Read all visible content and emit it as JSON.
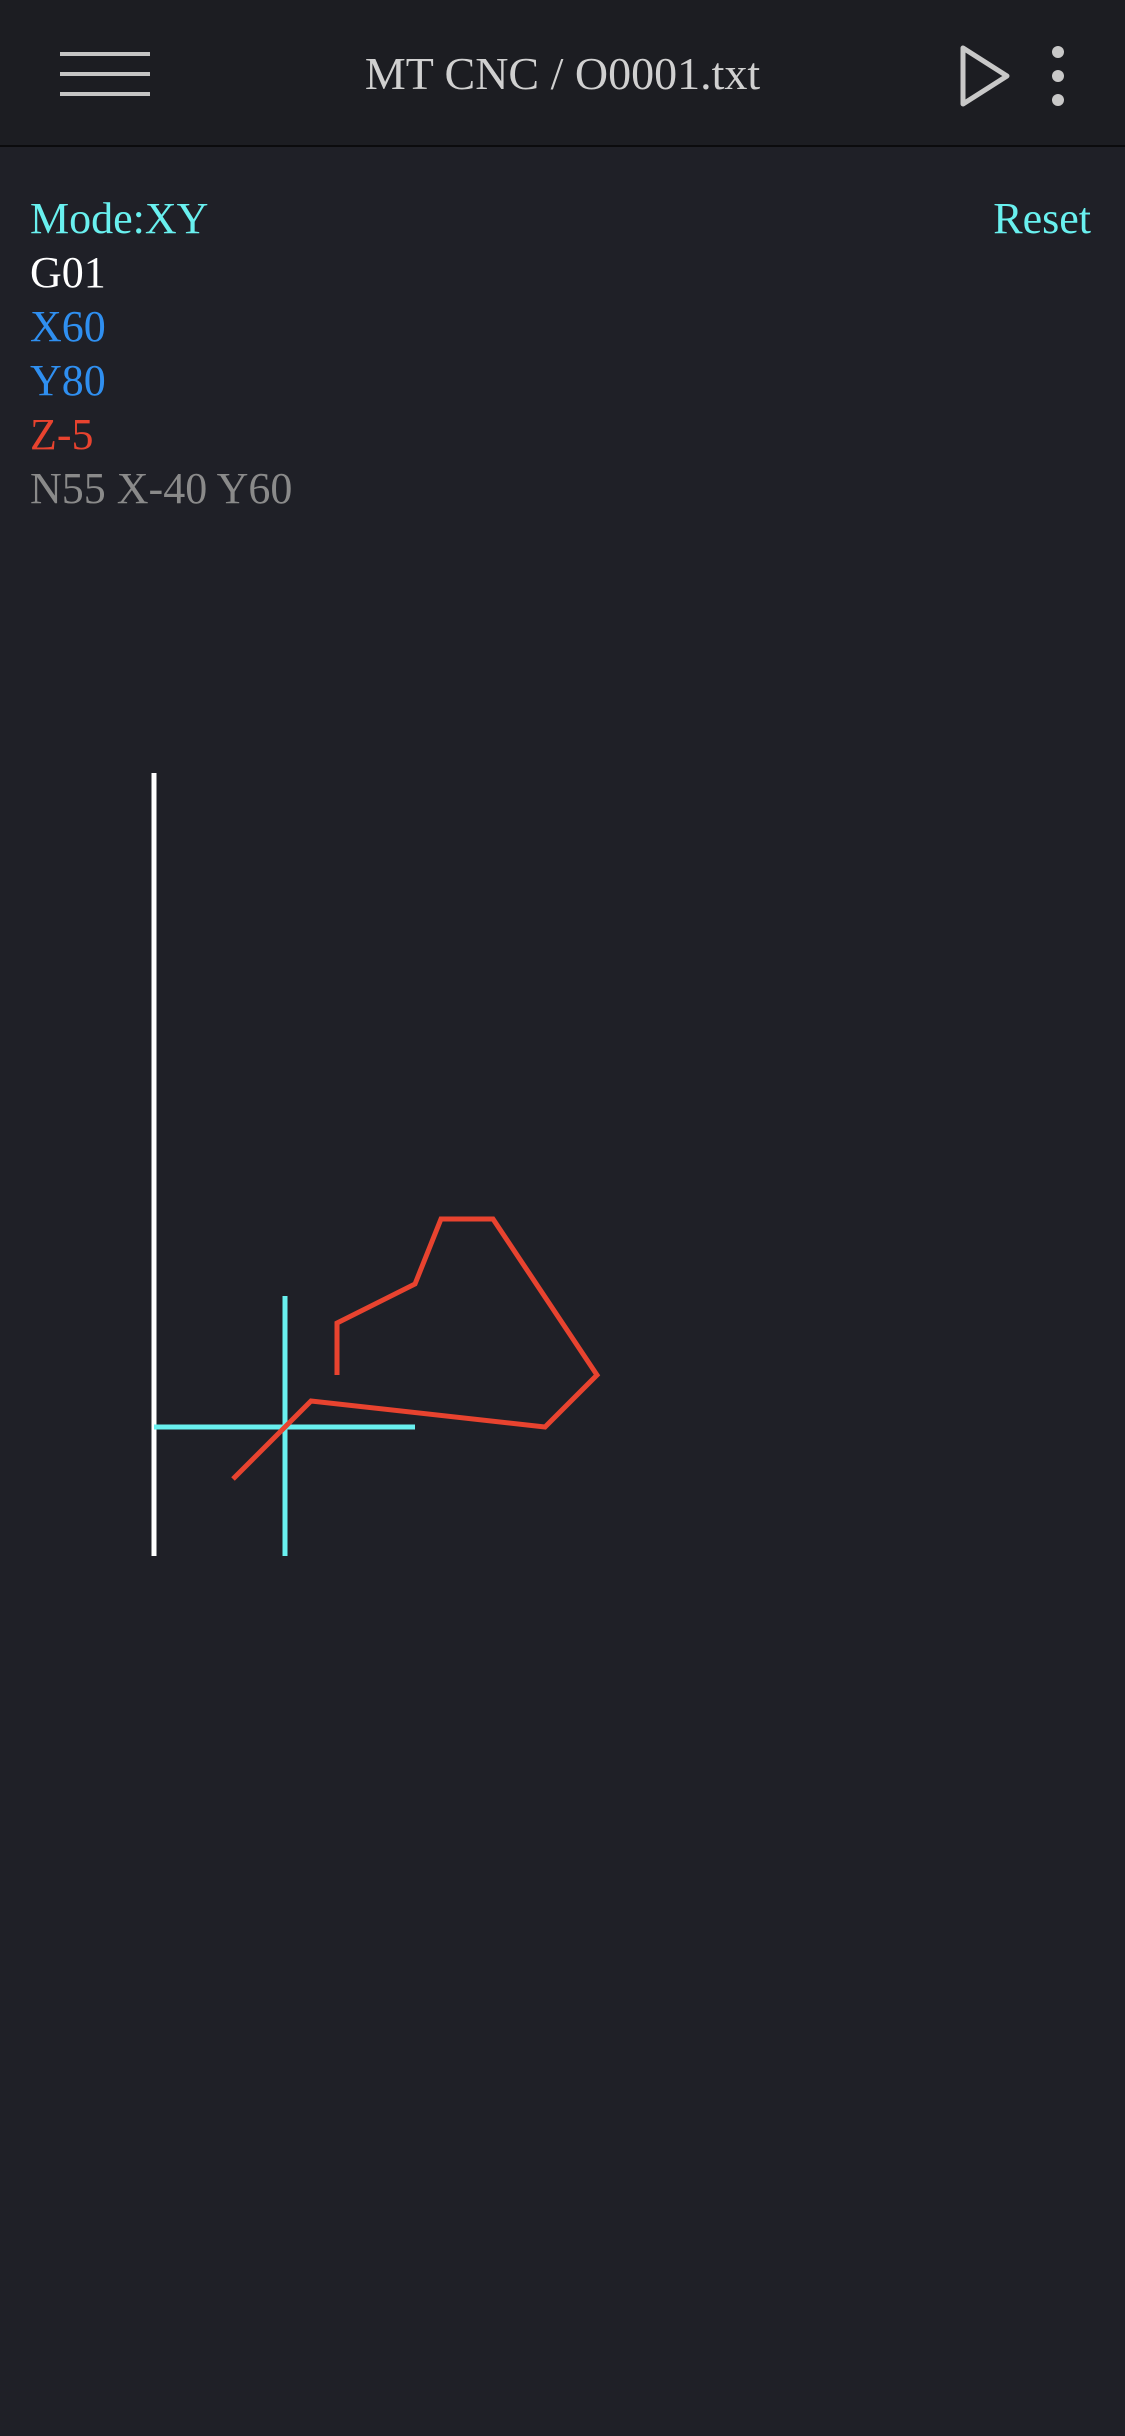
{
  "header": {
    "title": "MT CNC / O0001.txt",
    "menu_icon": "hamburger-menu-icon",
    "play_icon": "play-icon",
    "more_icon": "more-vertical-icon"
  },
  "status": {
    "mode": "Mode:XY",
    "reset_label": "Reset",
    "gcode": "G01",
    "x": "X60",
    "y": "Y80",
    "z": "Z-5",
    "next_line": "N55 X-40 Y60"
  },
  "colors": {
    "background": "#1f2027",
    "appbar": "#1c1d22",
    "accent_cyan": "#69f0ef",
    "axis_blue": "#2f8ff0",
    "toolpath_red": "#e8432f",
    "next_line_gray": "#8a8a8a"
  },
  "toolpath": {
    "plane": "XY",
    "points": [
      [
        -40,
        -40
      ],
      [
        20,
        20
      ],
      [
        200,
        0
      ],
      [
        240,
        40
      ],
      [
        160,
        160
      ],
      [
        120,
        160
      ],
      [
        100,
        110
      ],
      [
        40,
        80
      ],
      [
        40,
        40
      ]
    ],
    "tool_position": [
      0,
      0
    ]
  }
}
